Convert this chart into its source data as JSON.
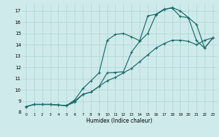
{
  "xlabel": "Humidex (Indice chaleur)",
  "bg_color": "#ceeaea",
  "line_color": "#1a6b6b",
  "grid_color": "#aed4d4",
  "xlim": [
    -0.5,
    23.5
  ],
  "ylim": [
    8,
    17.6
  ],
  "xticks": [
    0,
    1,
    2,
    3,
    4,
    5,
    6,
    7,
    8,
    9,
    10,
    11,
    12,
    13,
    14,
    15,
    16,
    17,
    18,
    19,
    20,
    21,
    22,
    23
  ],
  "yticks": [
    8,
    9,
    10,
    11,
    12,
    13,
    14,
    15,
    16,
    17
  ],
  "line1_x": [
    0,
    1,
    2,
    3,
    4,
    5,
    6,
    7,
    8,
    9,
    10,
    11,
    12,
    13,
    14,
    15,
    16,
    17,
    18,
    19,
    20,
    21,
    22,
    23
  ],
  "line1_y": [
    8.5,
    8.7,
    8.7,
    8.7,
    8.65,
    8.6,
    8.9,
    9.6,
    9.8,
    10.3,
    10.8,
    11.1,
    11.5,
    11.9,
    12.5,
    13.1,
    13.7,
    14.1,
    14.4,
    14.4,
    14.3,
    14.0,
    14.4,
    14.6
  ],
  "line2_x": [
    0,
    1,
    2,
    3,
    4,
    5,
    6,
    7,
    8,
    9,
    10,
    11,
    12,
    13,
    14,
    15,
    16,
    17,
    18,
    19,
    20,
    21,
    22,
    23
  ],
  "line2_y": [
    8.5,
    8.7,
    8.7,
    8.7,
    8.65,
    8.6,
    9.1,
    10.1,
    10.8,
    11.5,
    14.4,
    14.9,
    15.0,
    14.7,
    14.35,
    16.55,
    16.7,
    17.15,
    17.25,
    16.5,
    16.4,
    15.8,
    13.7,
    14.6
  ],
  "line3_x": [
    0,
    1,
    2,
    3,
    4,
    5,
    6,
    7,
    8,
    9,
    10,
    11,
    12,
    13,
    14,
    15,
    16,
    17,
    18,
    19,
    20,
    21,
    22,
    23
  ],
  "line3_y": [
    8.5,
    8.7,
    8.7,
    8.7,
    8.65,
    8.6,
    9.0,
    9.6,
    9.8,
    10.3,
    11.5,
    11.55,
    11.6,
    13.35,
    14.3,
    15.0,
    16.65,
    17.1,
    17.3,
    17.0,
    16.4,
    14.35,
    13.7,
    14.6
  ]
}
